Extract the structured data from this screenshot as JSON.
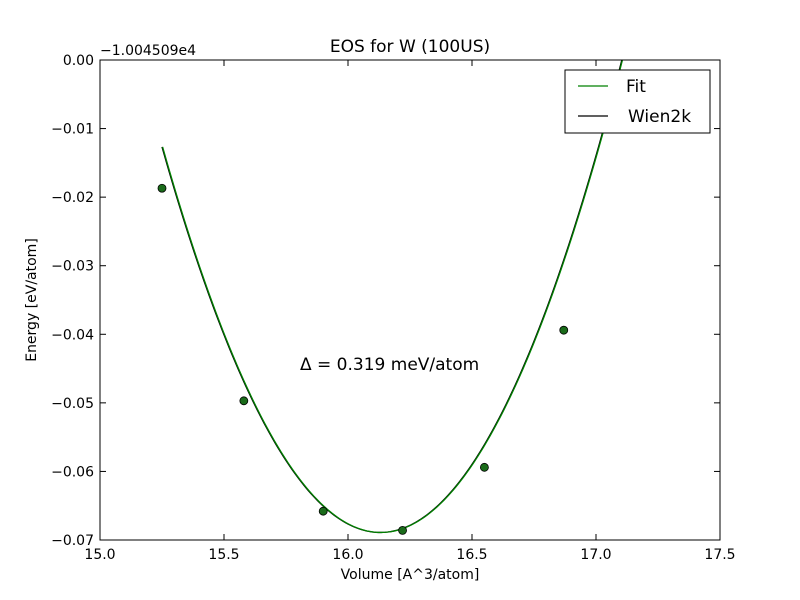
{
  "chart_data": {
    "type": "line",
    "title": "EOS for W (100US)",
    "xlabel": "Volume [A^3/atom]",
    "ylabel": "Energy [eV/atom]",
    "y_offset_label": "−1.004509e4",
    "xlim": [
      15.0,
      17.5
    ],
    "ylim": [
      -0.07,
      0.0
    ],
    "x_ticks": [
      15.0,
      15.5,
      16.0,
      16.5,
      17.0,
      17.5
    ],
    "x_tick_labels": [
      "15.0",
      "15.5",
      "16.0",
      "16.5",
      "17.0",
      "17.5"
    ],
    "y_ticks": [
      0.0,
      -0.01,
      -0.02,
      -0.03,
      -0.04,
      -0.05,
      -0.06,
      -0.07
    ],
    "y_tick_labels": [
      "0.00",
      "−0.01",
      "−0.02",
      "−0.03",
      "−0.04",
      "−0.05",
      "−0.06",
      "−0.07"
    ],
    "grid": false,
    "legend_position": "top-right",
    "annotation": "Δ = 0.319 meV/atom",
    "series": [
      {
        "name": "Fit",
        "color": "#008000",
        "style": "line",
        "fit": {
          "type": "parabola",
          "v0": 16.13,
          "e0": -0.0689,
          "a": 0.0726
        }
      },
      {
        "name": "Wien2k",
        "color": "#000000",
        "style": "line",
        "fit": {
          "type": "parabola",
          "v0": 16.13,
          "e0": -0.0689,
          "a": 0.0726
        }
      },
      {
        "name": "data points",
        "color": "#1a6b1a",
        "style": "markers",
        "x": [
          15.25,
          15.58,
          15.9,
          16.22,
          16.55,
          16.87
        ],
        "y": [
          -0.0187,
          -0.0497,
          -0.0658,
          -0.0686,
          -0.0594,
          -0.0394
        ]
      }
    ]
  }
}
